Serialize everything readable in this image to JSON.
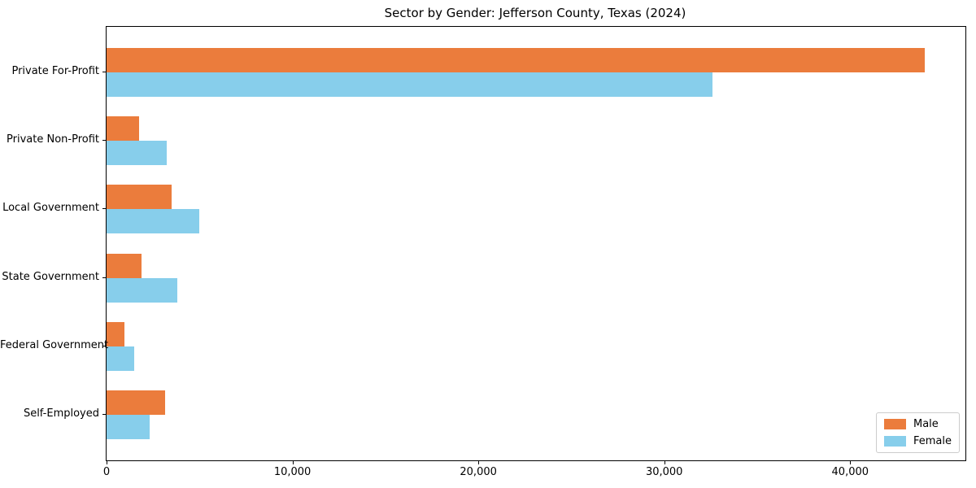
{
  "title": "Sector by Gender: Jefferson County, Texas (2024)",
  "colors": {
    "male": "#EB7C3C",
    "female": "#87CEEB",
    "spine": "#000000",
    "legend_border": "#CCCCCC",
    "background": "#FFFFFF"
  },
  "chart_data": {
    "type": "bar",
    "orientation": "horizontal",
    "title": "Sector by Gender: Jefferson County, Texas (2024)",
    "categories": [
      "Private For-Profit",
      "Private Non-Profit",
      "Local Government",
      "State Government",
      "Federal Government",
      "Self-Employed"
    ],
    "series": [
      {
        "name": "Male",
        "color": "#EB7C3C",
        "values": [
          44000,
          1750,
          3500,
          1900,
          950,
          3150
        ]
      },
      {
        "name": "Female",
        "color": "#87CEEB",
        "values": [
          32600,
          3250,
          5000,
          3800,
          1500,
          2300
        ]
      }
    ],
    "xlabel": "",
    "ylabel": "",
    "xlim": [
      0,
      46200
    ],
    "xticks": [
      0,
      10000,
      20000,
      30000,
      40000
    ],
    "xtick_labels": [
      "0",
      "10,000",
      "20,000",
      "30,000",
      "40,000"
    ],
    "grid": false,
    "legend": {
      "position": "lower right",
      "entries": [
        "Male",
        "Female"
      ]
    }
  }
}
